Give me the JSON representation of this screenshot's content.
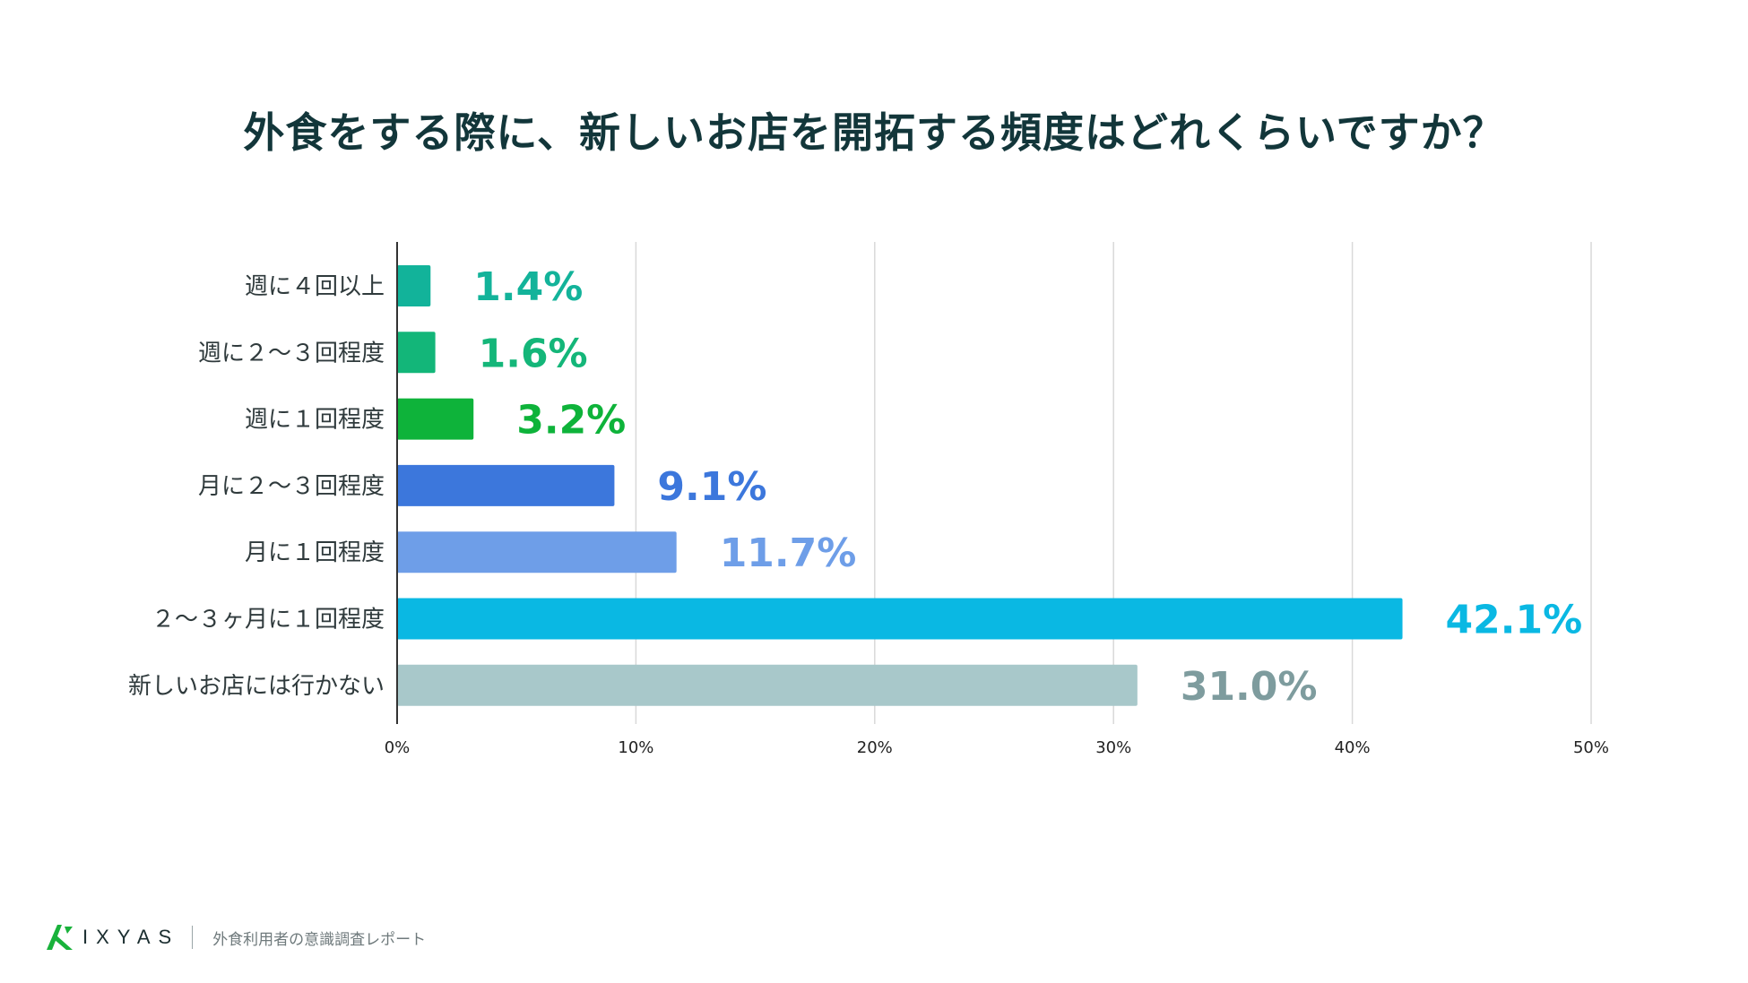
{
  "chart_data": {
    "type": "bar",
    "orientation": "horizontal",
    "title": "外食をする際に、新しいお店を開拓する頻度はどれくらいですか？",
    "categories": [
      "週に４回以上",
      "週に２〜３回程度",
      "週に１回程度",
      "月に２〜３回程度",
      "月に１回程度",
      "２〜３ヶ月に１回程度",
      "新しいお店には行かない"
    ],
    "values": [
      1.4,
      1.6,
      3.2,
      9.1,
      11.7,
      42.1,
      31.0
    ],
    "value_labels": [
      "1.4%",
      "1.6%",
      "3.2%",
      "9.1%",
      "11.7%",
      "42.1%",
      "31.0%"
    ],
    "bar_colors": [
      "#12b39a",
      "#13b679",
      "#0eb33a",
      "#3c77dc",
      "#6e9ee8",
      "#0ab8e3",
      "#a8c8ca"
    ],
    "label_colors": [
      "#13b39a",
      "#14b679",
      "#0eb33a",
      "#3c77dc",
      "#6e9ee8",
      "#0ab8e3",
      "#7e9c9e"
    ],
    "xlim": [
      0,
      50
    ],
    "xticks": [
      0,
      10,
      20,
      30,
      40,
      50
    ],
    "xtick_labels": [
      "0%",
      "10%",
      "20%",
      "30%",
      "40%",
      "50%"
    ],
    "xlabel": "",
    "ylabel": "",
    "grid": true
  },
  "footer": {
    "brand": "IXYAS",
    "report": "外食利用者の意識調査レポート"
  },
  "colors": {
    "title": "#12363a",
    "grid": "#d9d9d9",
    "axis": "#333333",
    "logo": "#19b23b"
  },
  "icons": {
    "logo": "ixyas-logo-icon"
  }
}
